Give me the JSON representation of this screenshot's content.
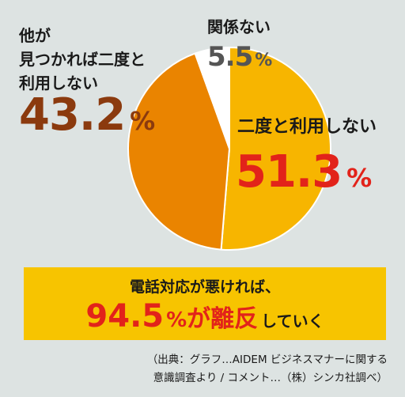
{
  "chart_data": {
    "type": "pie",
    "categories": [
      "二度と利用しない",
      "他が見つかれば二度と利用しない",
      "関係ない"
    ],
    "values": [
      51.3,
      43.2,
      5.5
    ],
    "colors": [
      "#f7b500",
      "#ea8400",
      "#ffffff"
    ],
    "labels": {
      "never": {
        "caption": "二度と利用しない",
        "value": "51.3",
        "unit": "%"
      },
      "other": {
        "caption_lines": [
          "他が",
          "見つかれば二度と",
          "利用しない"
        ],
        "value": "43.2",
        "unit": "%"
      },
      "unrelated": {
        "caption": "関係ない",
        "value": "5.5",
        "unit": "%"
      }
    }
  },
  "banner": {
    "line1": "電話対応が悪ければ、",
    "value": "94.5",
    "unit": "%",
    "mid": "が離反",
    "tail": "していく"
  },
  "source": {
    "line1": "（出典：グラフ…AIDEM ビジネスマナーに関する",
    "line2": "意識調査より / コメント…（株）シンカ社調べ）"
  }
}
